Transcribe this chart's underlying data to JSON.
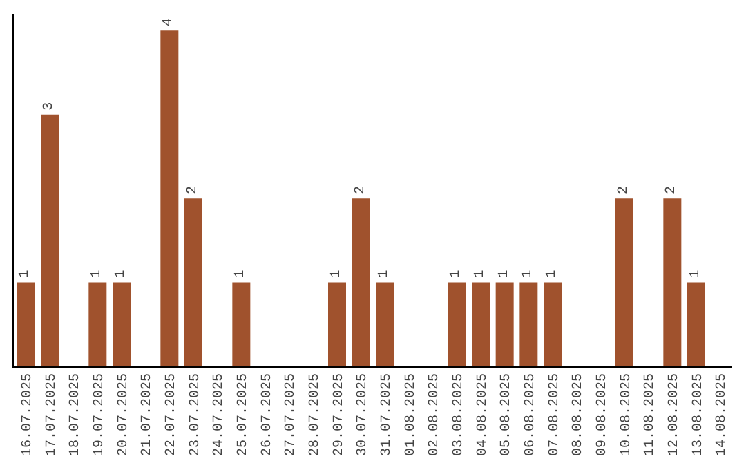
{
  "chart_data": {
    "type": "bar",
    "categories": [
      "16.07.2025",
      "17.07.2025",
      "18.07.2025",
      "19.07.2025",
      "20.07.2025",
      "21.07.2025",
      "22.07.2025",
      "23.07.2025",
      "24.07.2025",
      "25.07.2025",
      "26.07.2025",
      "27.07.2025",
      "28.07.2025",
      "29.07.2025",
      "30.07.2025",
      "31.07.2025",
      "01.08.2025",
      "02.08.2025",
      "03.08.2025",
      "04.08.2025",
      "05.08.2025",
      "06.08.2025",
      "07.08.2025",
      "08.08.2025",
      "09.08.2025",
      "10.08.2025",
      "11.08.2025",
      "12.08.2025",
      "13.08.2025",
      "14.08.2025"
    ],
    "values": [
      1,
      3,
      0,
      1,
      1,
      0,
      4,
      2,
      0,
      1,
      0,
      0,
      0,
      1,
      2,
      1,
      0,
      0,
      1,
      1,
      1,
      1,
      1,
      0,
      0,
      2,
      0,
      2,
      1,
      0
    ],
    "value_labels": [
      "1",
      "3",
      null,
      "1",
      "1",
      null,
      "4",
      "2",
      null,
      "1",
      null,
      null,
      null,
      "1",
      "2",
      "1",
      null,
      null,
      "1",
      "1",
      "1",
      "1",
      "1",
      null,
      null,
      "2",
      null,
      "2",
      "1",
      null
    ],
    "color": "#a0522d",
    "ylim": [
      0,
      4.2
    ],
    "tick_labels": "x"
  }
}
